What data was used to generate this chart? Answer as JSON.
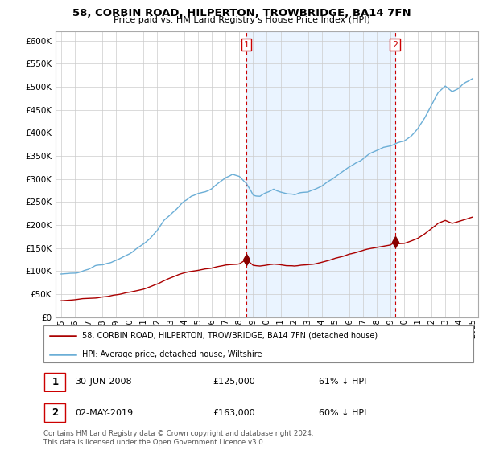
{
  "title": "58, CORBIN ROAD, HILPERTON, TROWBRIDGE, BA14 7FN",
  "subtitle": "Price paid vs. HM Land Registry's House Price Index (HPI)",
  "legend_line1": "58, CORBIN ROAD, HILPERTON, TROWBRIDGE, BA14 7FN (detached house)",
  "legend_line2": "HPI: Average price, detached house, Wiltshire",
  "footnote": "Contains HM Land Registry data © Crown copyright and database right 2024.\nThis data is licensed under the Open Government Licence v3.0.",
  "table": [
    {
      "num": "1",
      "date": "30-JUN-2008",
      "price": "£125,000",
      "pct": "61% ↓ HPI"
    },
    {
      "num": "2",
      "date": "02-MAY-2019",
      "price": "£163,000",
      "pct": "60% ↓ HPI"
    }
  ],
  "marker1_x": 2008.5,
  "marker1_y": 125000,
  "marker2_x": 2019.33,
  "marker2_y": 163000,
  "vline1_x": 2008.5,
  "vline2_x": 2019.33,
  "hpi_color": "#6baed6",
  "hpi_fill_color": "#ddeeff",
  "sale_color": "#aa0000",
  "vline_color": "#cc0000",
  "marker_color": "#880000",
  "ylim": [
    0,
    620000
  ],
  "yticks": [
    0,
    50000,
    100000,
    150000,
    200000,
    250000,
    300000,
    350000,
    400000,
    450000,
    500000,
    550000,
    600000
  ],
  "xlim_left": 1994.6,
  "xlim_right": 2025.4,
  "background_color": "#f0f4ff"
}
